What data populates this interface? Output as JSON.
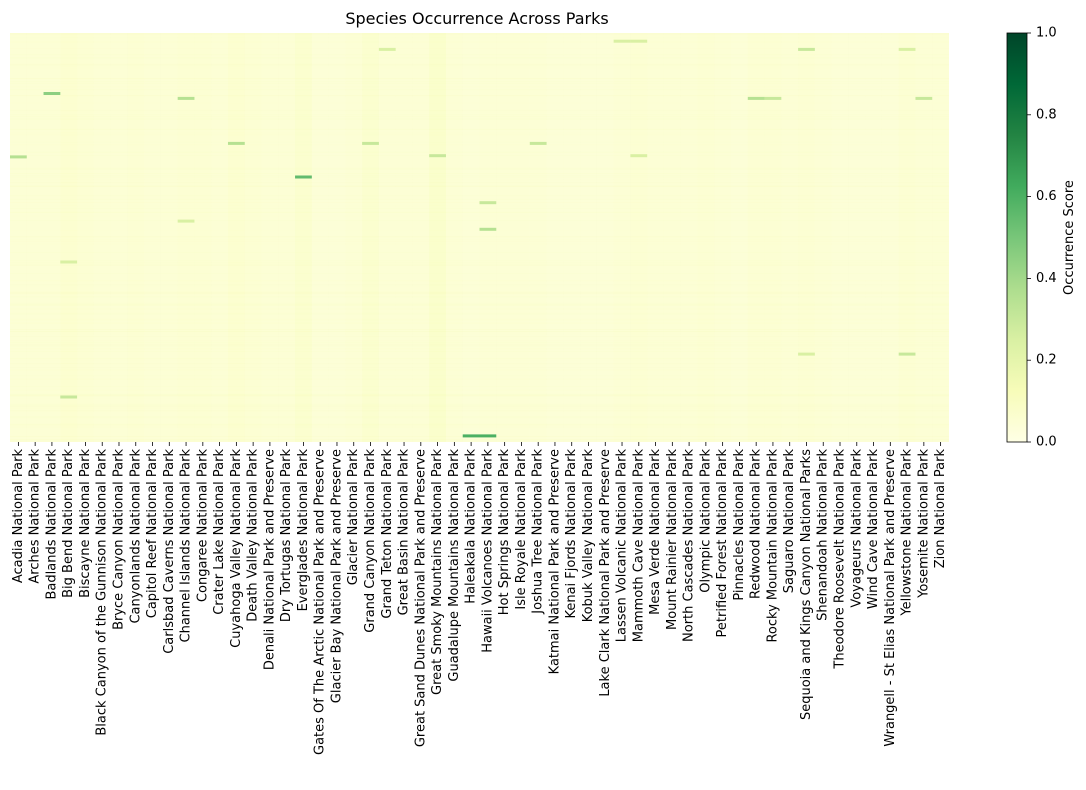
{
  "chart_data": {
    "type": "heatmap",
    "title": "Species Occurrence Across Parks",
    "xlabel": "",
    "ylabel": "",
    "colorbar_label": "Occurrence Score",
    "colorbar_ticks": [
      "0.0",
      "0.2",
      "0.4",
      "0.6",
      "0.8",
      "1.0"
    ],
    "value_range": [
      0,
      1
    ],
    "colormap": "YlGn",
    "colormap_stops": [
      "#ffffe5",
      "#f7fcb9",
      "#d9f0a3",
      "#addd8e",
      "#78c679",
      "#41ab5d",
      "#238443",
      "#006837",
      "#004529"
    ],
    "y_ticks_shown": false,
    "background_level": 0.04,
    "categories": [
      "Acadia National Park",
      "Arches National Park",
      "Badlands National Park",
      "Big Bend National Park",
      "Biscayne National Park",
      "Black Canyon of the Gunnison National Park",
      "Bryce Canyon National Park",
      "Canyonlands National Park",
      "Capitol Reef National Park",
      "Carlsbad Caverns National Park",
      "Channel Islands National Park",
      "Congaree National Park",
      "Crater Lake National Park",
      "Cuyahoga Valley National Park",
      "Death Valley National Park",
      "Denali National Park and Preserve",
      "Dry Tortugas National Park",
      "Everglades National Park",
      "Gates Of The Arctic National Park and Preserve",
      "Glacier Bay National Park and Preserve",
      "Glacier National Park",
      "Grand Canyon National Park",
      "Grand Teton National Park",
      "Great Basin National Park",
      "Great Sand Dunes National Park and Preserve",
      "Great Smoky Mountains National Park",
      "Guadalupe Mountains National Park",
      "Haleakala National Park",
      "Hawaii Volcanoes National Park",
      "Hot Springs National Park",
      "Isle Royale National Park",
      "Joshua Tree National Park",
      "Katmai National Park and Preserve",
      "Kenai Fjords National Park",
      "Kobuk Valley National Park",
      "Lake Clark National Park and Preserve",
      "Lassen Volcanic National Park",
      "Mammoth Cave National Park",
      "Mesa Verde National Park",
      "Mount Rainier National Park",
      "North Cascades National Park",
      "Olympic National Park",
      "Petrified Forest National Park",
      "Pinnacles National Park",
      "Redwood National Park",
      "Rocky Mountain National Park",
      "Saguaro National Park",
      "Sequoia and Kings Canyon National Parks",
      "Shenandoah National Park",
      "Theodore Roosevelt National Park",
      "Voyageurs National Park",
      "Wind Cave National Park",
      "Wrangell - St Elias National Park and Preserve",
      "Yellowstone National Park",
      "Yosemite National Park",
      "Zion National Park"
    ],
    "column_mean_levels": [
      0.05,
      0.05,
      0.05,
      0.07,
      0.06,
      0.05,
      0.05,
      0.06,
      0.05,
      0.05,
      0.06,
      0.06,
      0.05,
      0.07,
      0.06,
      0.05,
      0.05,
      0.08,
      0.04,
      0.04,
      0.05,
      0.08,
      0.05,
      0.05,
      0.05,
      0.09,
      0.05,
      0.04,
      0.05,
      0.05,
      0.05,
      0.05,
      0.04,
      0.04,
      0.04,
      0.04,
      0.05,
      0.06,
      0.05,
      0.05,
      0.05,
      0.06,
      0.05,
      0.04,
      0.06,
      0.06,
      0.05,
      0.06,
      0.05,
      0.04,
      0.04,
      0.04,
      0.04,
      0.06,
      0.05,
      0.05
    ],
    "highlights": [
      {
        "column": 27,
        "row_fraction": 0.985,
        "value": 0.6
      },
      {
        "column": 28,
        "row_fraction": 0.985,
        "value": 0.6
      },
      {
        "column": 17,
        "row_fraction": 0.352,
        "value": 0.55
      },
      {
        "column": 2,
        "row_fraction": 0.148,
        "value": 0.45
      },
      {
        "column": 0,
        "row_fraction": 0.303,
        "value": 0.35
      },
      {
        "column": 10,
        "row_fraction": 0.16,
        "value": 0.35
      },
      {
        "column": 13,
        "row_fraction": 0.27,
        "value": 0.35
      },
      {
        "column": 21,
        "row_fraction": 0.27,
        "value": 0.3
      },
      {
        "column": 25,
        "row_fraction": 0.3,
        "value": 0.3
      },
      {
        "column": 31,
        "row_fraction": 0.27,
        "value": 0.3
      },
      {
        "column": 28,
        "row_fraction": 0.48,
        "value": 0.35
      },
      {
        "column": 28,
        "row_fraction": 0.415,
        "value": 0.3
      },
      {
        "column": 44,
        "row_fraction": 0.16,
        "value": 0.35
      },
      {
        "column": 45,
        "row_fraction": 0.16,
        "value": 0.3
      },
      {
        "column": 53,
        "row_fraction": 0.785,
        "value": 0.3
      },
      {
        "column": 54,
        "row_fraction": 0.16,
        "value": 0.3
      },
      {
        "column": 47,
        "row_fraction": 0.04,
        "value": 0.3
      },
      {
        "column": 47,
        "row_fraction": 0.785,
        "value": 0.25
      },
      {
        "column": 3,
        "row_fraction": 0.89,
        "value": 0.3
      },
      {
        "column": 3,
        "row_fraction": 0.56,
        "value": 0.25
      },
      {
        "column": 10,
        "row_fraction": 0.46,
        "value": 0.25
      },
      {
        "column": 37,
        "row_fraction": 0.3,
        "value": 0.25
      },
      {
        "column": 22,
        "row_fraction": 0.04,
        "value": 0.25
      },
      {
        "column": 37,
        "row_fraction": 0.02,
        "value": 0.25
      },
      {
        "column": 36,
        "row_fraction": 0.02,
        "value": 0.25
      },
      {
        "column": 53,
        "row_fraction": 0.04,
        "value": 0.25
      }
    ]
  }
}
